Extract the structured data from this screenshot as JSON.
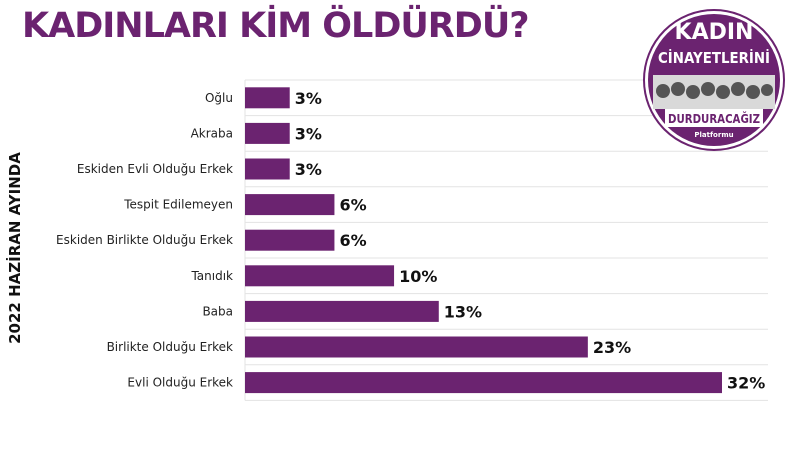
{
  "title": "KADINLARI KİM ÖLDÜRDÜ?",
  "colors": {
    "bar": "#6b2370",
    "title": "#6b2370",
    "logo": "#6b2370"
  },
  "logo": {
    "line1": "KADIN",
    "line2": "CİNAYETLERİNİ",
    "line3": "DURDURACAĞIZ",
    "line4": "Platformu"
  },
  "chart_data": {
    "type": "bar",
    "orientation": "horizontal",
    "title": "KADINLARI KİM ÖLDÜRDÜ?",
    "ylabel": "2022 HAZİRAN AYINDA",
    "xlabel": "",
    "categories": [
      "Oğlu",
      "Akraba",
      "Eskiden Evli Olduğu Erkek",
      "Tespit Edilemeyen",
      "Eskiden Birlikte Olduğu Erkek",
      "Tanıdık",
      "Baba",
      "Birlikte Olduğu Erkek",
      "Evli Olduğu Erkek"
    ],
    "values": [
      3,
      3,
      3,
      6,
      6,
      10,
      13,
      23,
      32
    ],
    "value_labels": [
      "3%",
      "3%",
      "3%",
      "6%",
      "6%",
      "10%",
      "13%",
      "23%",
      "32%"
    ],
    "xlim": [
      0,
      32
    ],
    "grid": true
  }
}
